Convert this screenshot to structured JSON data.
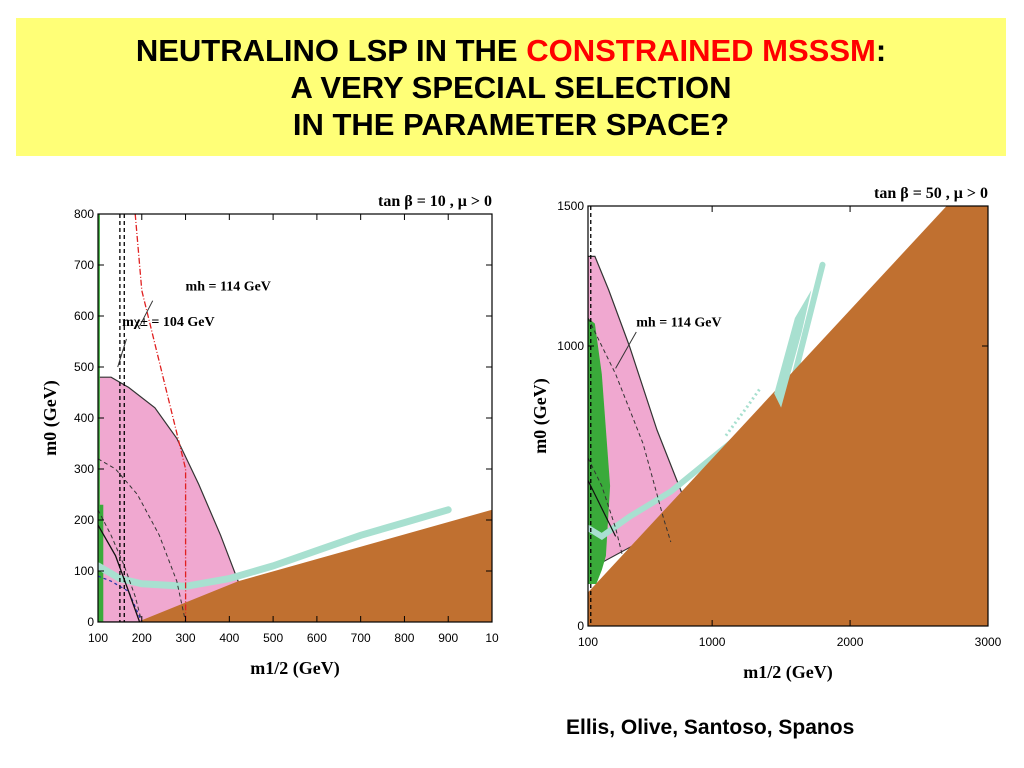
{
  "slide": {
    "title_line1_pre": "NEUTRALINO LSP IN THE ",
    "title_line1_red": "CONSTRAINED MSSSM",
    "title_line1_post": ":",
    "title_line2": "A VERY SPECIAL SELECTION",
    "title_line3": "IN THE PARAMETER SPACE?",
    "credit": "Ellis, Olive, Santoso, Spanos"
  },
  "colors": {
    "title_bg": "#ffff77",
    "title_red": "#ff0000",
    "excluded_brown": "#c07030",
    "pink_region": "#f0a8d0",
    "green_band": "#3aaa3a",
    "relic_cyan": "#a8e0d0"
  },
  "chart_data": [
    {
      "type": "area",
      "label": "tan β = 10 , μ > 0",
      "xlabel": "m1/2 (GeV)",
      "ylabel": "m0 (GeV)",
      "xlim": [
        100,
        1000
      ],
      "ylim": [
        0,
        800
      ],
      "x_ticks": [
        "100",
        "200",
        "300",
        "400",
        "500",
        "600",
        "700",
        "800",
        "900",
        "10"
      ],
      "y_ticks": [
        "0",
        "100",
        "200",
        "300",
        "400",
        "500",
        "600",
        "700",
        "800"
      ],
      "annotations": [
        {
          "text": "mh = 114 GeV",
          "at": [
            300,
            650
          ]
        },
        {
          "text": "mχ± = 104 GeV",
          "at": [
            155,
            580
          ]
        }
      ],
      "regions": {
        "stau_lsp_excluded": {
          "x": [
            190,
            1000,
            1000
          ],
          "y": [
            0,
            0,
            220
          ],
          "baseline_at_190": 0,
          "at_420": 80
        },
        "g_minus_2_pink": {
          "x": [
            100,
            130,
            170,
            230,
            280,
            330,
            380,
            420,
            430,
            100
          ],
          "y": [
            480,
            480,
            460,
            420,
            360,
            270,
            170,
            80,
            0,
            0
          ]
        },
        "relic_density_band": {
          "x": [
            100,
            120,
            150,
            200,
            300,
            400,
            500,
            600,
            700,
            800,
            900
          ],
          "y": [
            110,
            100,
            85,
            75,
            70,
            85,
            110,
            140,
            170,
            195,
            220
          ]
        },
        "b_to_s_gamma_green": {
          "x": [
            100,
            112
          ],
          "y": [
            0,
            230
          ]
        }
      },
      "lines": {
        "chargino_104": {
          "x": 150,
          "style": "black-dashed"
        },
        "chargino_bound_2": {
          "x": 160,
          "style": "black-dashed"
        },
        "higgs_114": {
          "x": [
            185,
            200,
            300,
            300
          ],
          "y": [
            800,
            650,
            300,
            0
          ],
          "style": "red-dashdot"
        }
      }
    },
    {
      "type": "area",
      "label": "tan β = 50 , μ > 0",
      "xlabel": "m1/2 (GeV)",
      "ylabel": "m0 (GeV)",
      "xlim": [
        100,
        3000
      ],
      "ylim": [
        0,
        1500
      ],
      "x_ticks": [
        "100",
        "1000",
        "2000",
        "3000"
      ],
      "y_ticks": [
        "0",
        "1000",
        "1500"
      ],
      "annotations": [
        {
          "text": "mh = 114 GeV",
          "at": [
            450,
            1070
          ]
        }
      ],
      "regions": {
        "stau_lsp_excluded": {
          "x": [
            100,
            2700,
            3000,
            3000,
            100
          ],
          "y": [
            120,
            1500,
            1500,
            0,
            0
          ]
        },
        "g_minus_2_pink": {
          "x": [
            100,
            150,
            250,
            400,
            600,
            800,
            850,
            100
          ],
          "y": [
            1320,
            1320,
            1200,
            1000,
            700,
            450,
            400,
            200
          ]
        },
        "relic_density_band": {
          "x": [
            100,
            200,
            400,
            700,
            1000,
            1300,
            1600,
            1800
          ],
          "y": [
            350,
            320,
            390,
            480,
            600,
            720,
            900,
            1290
          ]
        },
        "b_to_s_gamma_green": {
          "x": [
            100,
            250
          ],
          "y": [
            150,
            1100
          ]
        }
      },
      "lines": {
        "chargino_104": {
          "x": 120,
          "style": "black-dashed"
        }
      }
    }
  ]
}
